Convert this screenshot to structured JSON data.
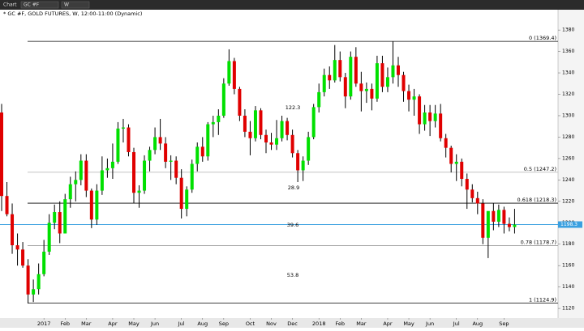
{
  "toolbar": {
    "tab": "Chart",
    "symbol": "GC #F",
    "interval": "W"
  },
  "chart_data": {
    "type": "candlestick",
    "title": "* GC #F, GOLD FUTURES, W, 12:00-11:00 (Dynamic)",
    "categories": [
      null,
      null,
      null,
      null,
      null,
      null,
      null,
      null,
      "2017",
      null,
      null,
      null,
      "Feb",
      null,
      null,
      null,
      "Mar",
      null,
      null,
      null,
      null,
      "Apr",
      null,
      null,
      null,
      "May",
      null,
      null,
      null,
      "Jun",
      null,
      null,
      null,
      null,
      "Jul",
      null,
      null,
      null,
      "Aug",
      null,
      null,
      null,
      "Sep",
      null,
      null,
      null,
      null,
      "Oct",
      null,
      null,
      null,
      "Nov",
      null,
      null,
      null,
      "Dec",
      null,
      null,
      null,
      null,
      "2018",
      null,
      null,
      null,
      "Feb",
      null,
      null,
      null,
      "Mar",
      null,
      null,
      null,
      null,
      "Apr",
      null,
      null,
      null,
      "May",
      null,
      null,
      null,
      "Jun",
      null,
      null,
      null,
      null,
      "Jul",
      null,
      null,
      null,
      "Aug",
      null,
      null,
      null,
      null,
      "Sep",
      null,
      null
    ],
    "open": [
      1303,
      1225,
      1208,
      1179,
      1175,
      1160,
      1133,
      1138,
      1152,
      1173,
      1200,
      1210,
      1190,
      1222,
      1236,
      1240,
      1258,
      1230,
      1203,
      1230,
      1249,
      1251,
      1257,
      1288,
      1289,
      1266,
      1228,
      1230,
      1258,
      1268,
      1280,
      1274,
      1257,
      1258,
      1242,
      1213,
      1231,
      1255,
      1271,
      1262,
      1292,
      1294,
      1300,
      1330,
      1351,
      1325,
      1300,
      1285,
      1279,
      1305,
      1282,
      1275,
      1273,
      1279,
      1295,
      1282,
      1265,
      1249,
      1258,
      1280,
      1308,
      1322,
      1338,
      1333,
      1352,
      1336,
      1318,
      1355,
      1330,
      1323,
      1325,
      1316,
      1349,
      1327,
      1336,
      1347,
      1338,
      1323,
      1315,
      1318,
      1292,
      1303,
      1295,
      1302,
      1279,
      1270,
      1255,
      1257,
      1241,
      1231,
      1223,
      1218,
      1186,
      1211,
      1201,
      1212,
      1199,
      1196
    ],
    "high": [
      1311,
      1238,
      1218,
      1190,
      1182,
      1166,
      1147,
      1162,
      1184,
      1208,
      1217,
      1220,
      1227,
      1243,
      1248,
      1264,
      1264,
      1232,
      1236,
      1262,
      1260,
      1274,
      1294,
      1297,
      1292,
      1270,
      1235,
      1263,
      1271,
      1289,
      1297,
      1280,
      1263,
      1262,
      1250,
      1234,
      1259,
      1275,
      1280,
      1294,
      1300,
      1306,
      1335,
      1362,
      1354,
      1327,
      1306,
      1295,
      1309,
      1307,
      1287,
      1284,
      1296,
      1300,
      1298,
      1287,
      1268,
      1262,
      1285,
      1311,
      1330,
      1344,
      1346,
      1366,
      1360,
      1340,
      1360,
      1364,
      1341,
      1331,
      1330,
      1356,
      1356,
      1345,
      1369.4,
      1355,
      1341,
      1329,
      1325,
      1320,
      1310,
      1310,
      1310,
      1311,
      1283,
      1272,
      1264,
      1260,
      1246,
      1236,
      1229,
      1222,
      1210,
      1218,
      1217,
      1215,
      1205,
      1213
    ],
    "low": [
      1211,
      1206,
      1171,
      1160,
      1158,
      1124.9,
      1126,
      1133,
      1150,
      1170,
      1194,
      1181,
      1190,
      1214,
      1220,
      1235,
      1224,
      1195,
      1198,
      1226,
      1242,
      1241,
      1255,
      1275,
      1262,
      1218,
      1214,
      1227,
      1248,
      1264,
      1268,
      1251,
      1240,
      1236,
      1204,
      1206,
      1228,
      1248,
      1257,
      1258,
      1280,
      1282,
      1298,
      1328,
      1320,
      1295,
      1280,
      1263,
      1276,
      1278,
      1265,
      1268,
      1268,
      1276,
      1277,
      1261,
      1238,
      1239,
      1254,
      1278,
      1303,
      1318,
      1325,
      1331,
      1332,
      1307,
      1315,
      1327,
      1304,
      1312,
      1305,
      1313,
      1322,
      1322,
      1330,
      1327,
      1313,
      1304,
      1300,
      1283,
      1286,
      1281,
      1289,
      1276,
      1261,
      1247,
      1239,
      1234,
      1213,
      1219,
      1208,
      1180,
      1167,
      1193,
      1196,
      1190,
      1192,
      1190
    ],
    "close": [
      1225,
      1208,
      1179,
      1175,
      1160,
      1133,
      1138,
      1152,
      1173,
      1200,
      1210,
      1190,
      1222,
      1236,
      1240,
      1258,
      1230,
      1203,
      1230,
      1249,
      1251,
      1257,
      1288,
      1289,
      1266,
      1228,
      1230,
      1258,
      1268,
      1280,
      1274,
      1257,
      1258,
      1242,
      1213,
      1231,
      1255,
      1271,
      1262,
      1292,
      1294,
      1300,
      1330,
      1351,
      1325,
      1300,
      1285,
      1279,
      1305,
      1282,
      1275,
      1273,
      1279,
      1295,
      1282,
      1265,
      1249,
      1258,
      1280,
      1308,
      1322,
      1338,
      1333,
      1352,
      1336,
      1318,
      1355,
      1330,
      1323,
      1325,
      1316,
      1349,
      1327,
      1336,
      1347,
      1338,
      1323,
      1315,
      1318,
      1292,
      1303,
      1295,
      1302,
      1279,
      1270,
      1255,
      1257,
      1241,
      1231,
      1223,
      1218,
      1186,
      1211,
      1201,
      1212,
      1199,
      1196,
      1198.3
    ],
    "up_color": "#00e000",
    "down_color": "#e00000",
    "wick_color": "#000000",
    "ylim": [
      1111,
      1399
    ],
    "yticks": [
      1120,
      1140,
      1160,
      1180,
      1200,
      1220,
      1240,
      1260,
      1280,
      1300,
      1320,
      1340,
      1360,
      1380
    ],
    "levels": [
      {
        "value": 1369.4,
        "label": "0 (1369.4)",
        "color": "#000000"
      },
      {
        "value": 1247.2,
        "label": "0.5 (1247.2)",
        "color": "#bbbbbb"
      },
      {
        "value": 1218.3,
        "label": "0.618 (1218.3)",
        "color": "#000000"
      },
      {
        "value": 1178.7,
        "label": "0.78 (1178.7)",
        "color": "#999999"
      },
      {
        "value": 1124.9,
        "label": "1 (1124.9)",
        "color": "#000000"
      }
    ],
    "annotations": [
      122.3,
      28.9,
      39.6,
      53.8
    ],
    "last_price": 1198.3,
    "last_price_color": "#3aa0e0"
  }
}
